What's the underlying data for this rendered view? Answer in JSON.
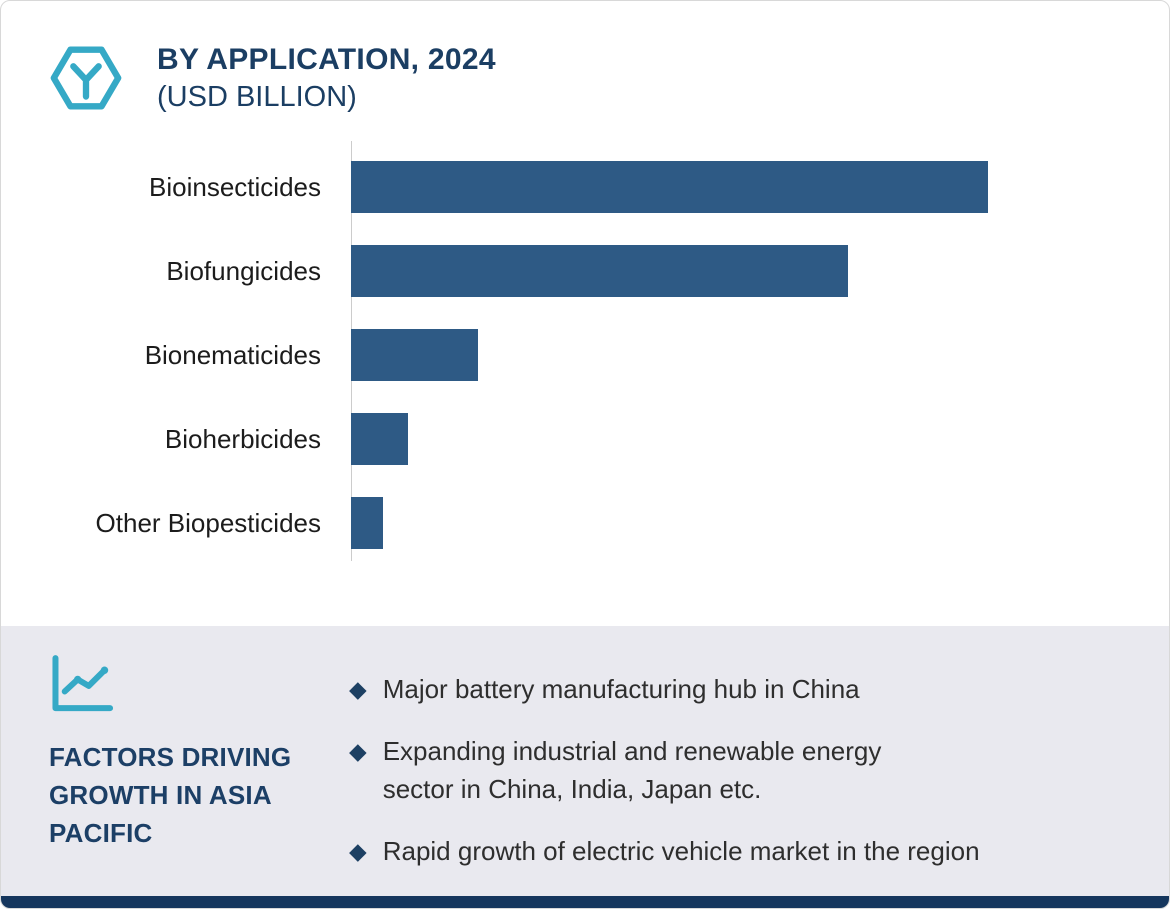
{
  "header": {
    "title": "BY APPLICATION, 2024",
    "subtitle": "(USD BILLION)",
    "icon": "hexagon-y-icon"
  },
  "chart_data": {
    "type": "bar",
    "orientation": "horizontal",
    "title": "BY APPLICATION, 2024 (USD BILLION)",
    "categories": [
      "Bioinsecticides",
      "Biofungicides",
      "Bionematicides",
      "Bioherbicides",
      "Other Biopesticides"
    ],
    "values": [
      100,
      78,
      20,
      9,
      5
    ],
    "values_note": "relative bar lengths estimated from pixels; no numeric axis ticks or data labels are shown in the image",
    "unit": "USD Billion",
    "bar_color": "#2E5A85",
    "grid": false,
    "legend": false,
    "xlabel": "",
    "ylabel": ""
  },
  "factors": {
    "icon": "line-chart-icon",
    "heading": "FACTORS DRIVING GROWTH IN ASIA PACIFIC",
    "marker": "◆",
    "items": [
      {
        "lines": [
          "Major battery manufacturing hub in China"
        ]
      },
      {
        "lines": [
          "Expanding industrial and renewable energy",
          "sector in China, India, Japan etc."
        ]
      },
      {
        "lines": [
          "Rapid growth of electric vehicle market in the region"
        ]
      }
    ]
  },
  "colors": {
    "accent_teal": "#35A9C6",
    "navy": "#1B3E63",
    "bar": "#2E5A85",
    "panel_bg": "#E9E9EF",
    "footer_strip": "#15365D"
  }
}
